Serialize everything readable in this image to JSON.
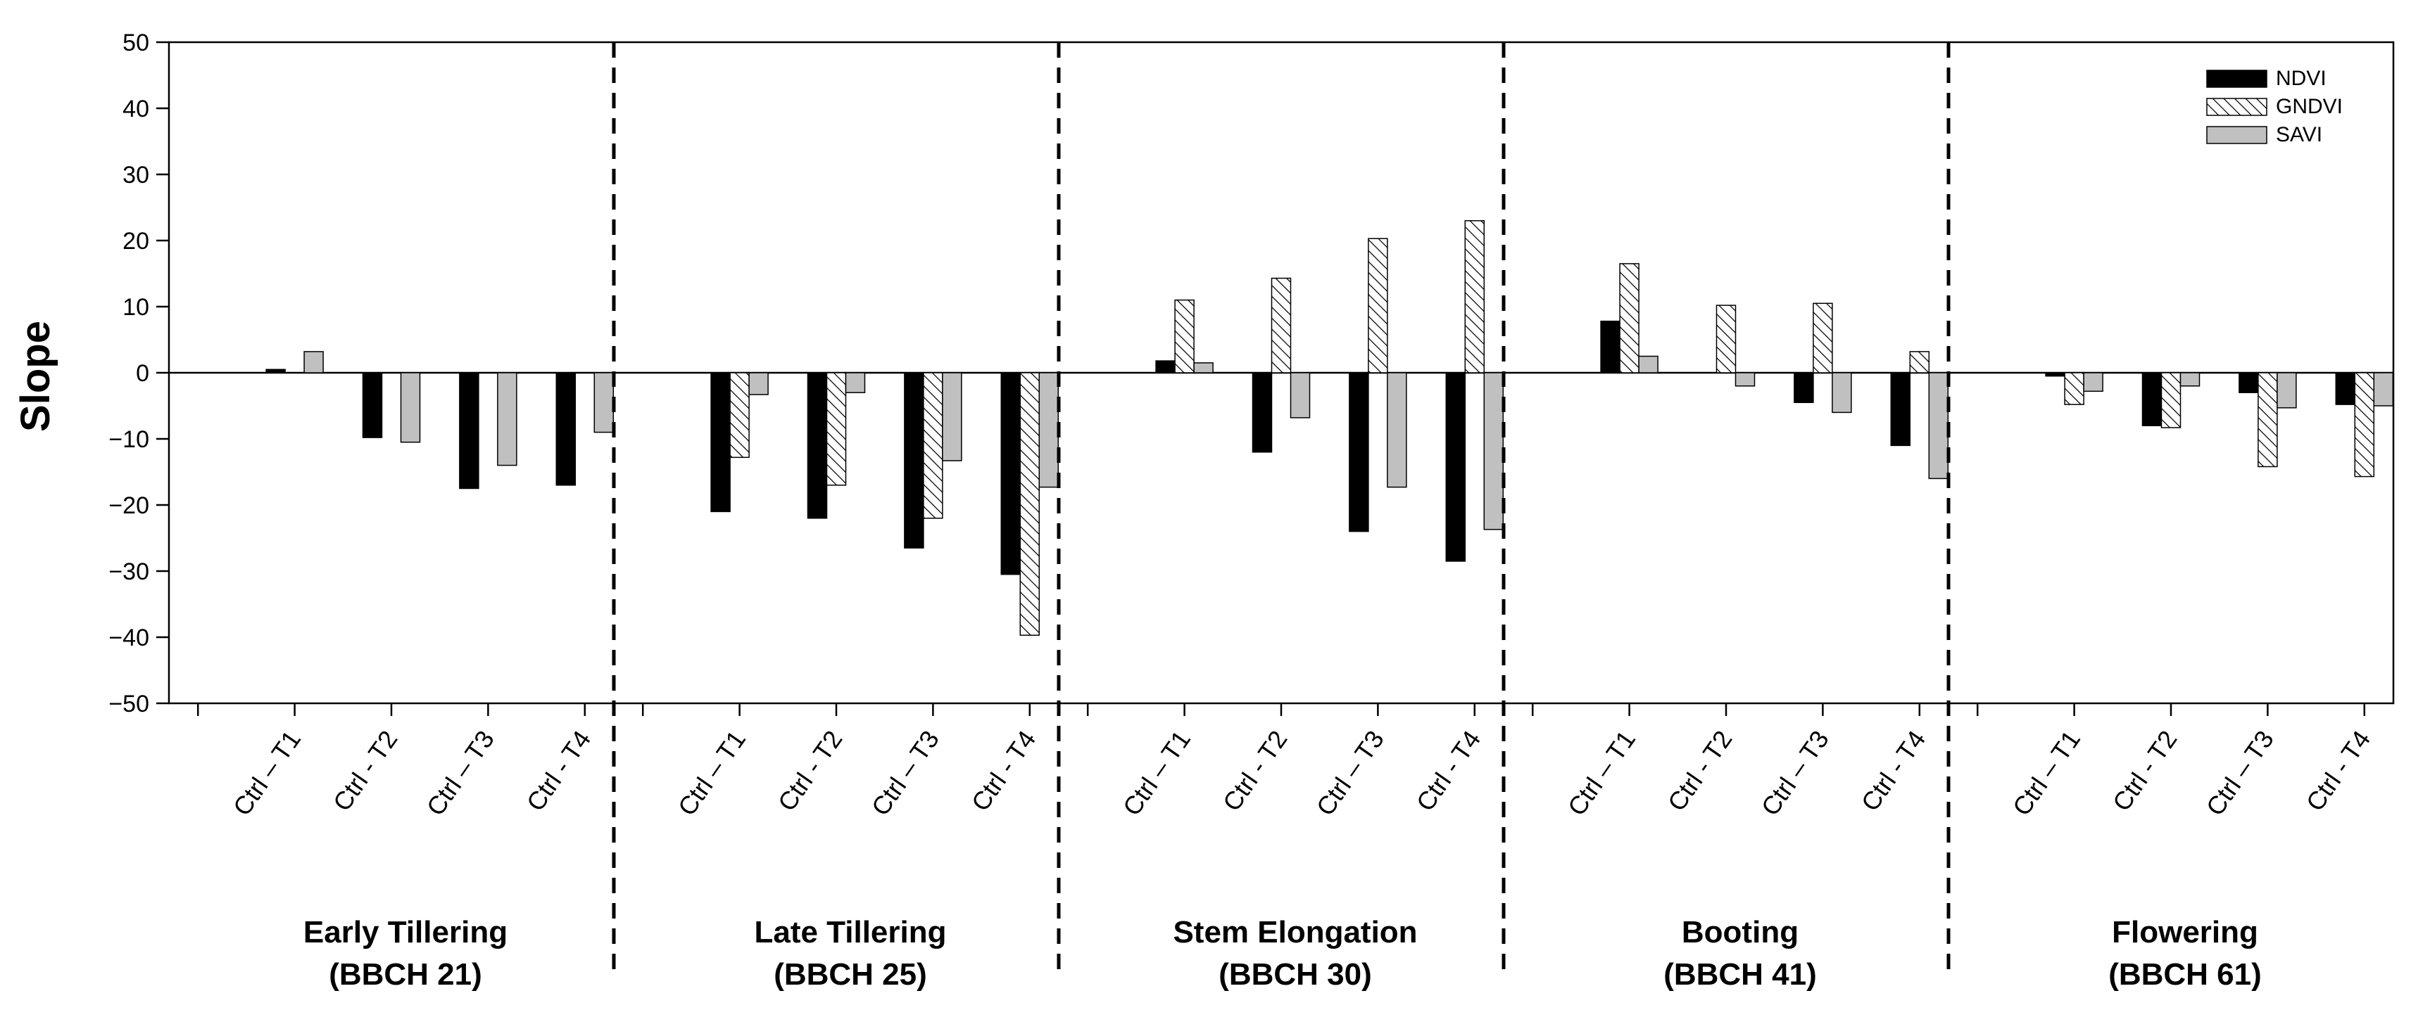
{
  "chart_data": {
    "type": "bar",
    "title": "",
    "xlabel": "",
    "ylabel": "Slope",
    "ylim": [
      -50,
      50
    ],
    "yticks": [
      50,
      40,
      30,
      20,
      10,
      0,
      -10,
      -20,
      -30,
      -40,
      -50
    ],
    "ytick_labels": [
      "50",
      "40",
      "30",
      "20",
      "10",
      "0",
      "−10",
      "−20",
      "−30",
      "−40",
      "−50"
    ],
    "grid": false,
    "legend_position": "top-right",
    "series": [
      {
        "name": "NDVI",
        "fill": "solid",
        "color": "#000000"
      },
      {
        "name": "GNDVI",
        "fill": "hatched",
        "color": "#ffffff"
      },
      {
        "name": "SAVI",
        "fill": "solid",
        "color": "#c0c0c0"
      }
    ],
    "groups": [
      {
        "stage": "Early Tillering",
        "code": "(BBCH 21)",
        "categories": [
          "Ctrl – T1",
          "Ctrl - T2",
          "Ctrl – T3",
          "Ctrl - T4"
        ],
        "values": {
          "NDVI": [
            0.5,
            -9.8,
            -17.5,
            -17
          ],
          "GNDVI": [
            0,
            0,
            0,
            0
          ],
          "SAVI": [
            3.2,
            -10.5,
            -14,
            -9
          ]
        }
      },
      {
        "stage": "Late Tillering",
        "code": "(BBCH 25)",
        "categories": [
          "Ctrl – T1",
          "Ctrl - T2",
          "Ctrl – T3",
          "Ctrl - T4"
        ],
        "values": {
          "NDVI": [
            -21,
            -22,
            -26.5,
            -30.5
          ],
          "GNDVI": [
            -12.8,
            -17,
            -22,
            -39.7
          ],
          "SAVI": [
            -3.3,
            -3,
            -13.3,
            -17.3
          ]
        }
      },
      {
        "stage": "Stem Elongation",
        "code": "(BBCH 30)",
        "categories": [
          "Ctrl – T1",
          "Ctrl - T2",
          "Ctrl – T3",
          "Ctrl - T4"
        ],
        "values": {
          "NDVI": [
            1.8,
            -12,
            -24,
            -28.5
          ],
          "GNDVI": [
            11,
            14.3,
            20.3,
            23
          ],
          "SAVI": [
            1.5,
            -6.8,
            -17.3,
            -23.7
          ]
        }
      },
      {
        "stage": "Booting",
        "code": "(BBCH 41)",
        "categories": [
          "Ctrl – T1",
          "Ctrl - T2",
          "Ctrl – T3",
          "Ctrl - T4"
        ],
        "values": {
          "NDVI": [
            7.8,
            0,
            -4.5,
            -11
          ],
          "GNDVI": [
            16.5,
            10.2,
            10.5,
            3.2
          ],
          "SAVI": [
            2.5,
            -2,
            -6,
            -16
          ]
        }
      },
      {
        "stage": "Flowering",
        "code": "(BBCH 61)",
        "categories": [
          "Ctrl – T1",
          "Ctrl - T2",
          "Ctrl – T3",
          "Ctrl - T4"
        ],
        "values": {
          "NDVI": [
            -0.5,
            -8,
            -3,
            -4.8
          ],
          "GNDVI": [
            -4.8,
            -8.3,
            -14.2,
            -15.7
          ],
          "SAVI": [
            -2.8,
            -2,
            -5.3,
            -5
          ]
        }
      }
    ]
  }
}
